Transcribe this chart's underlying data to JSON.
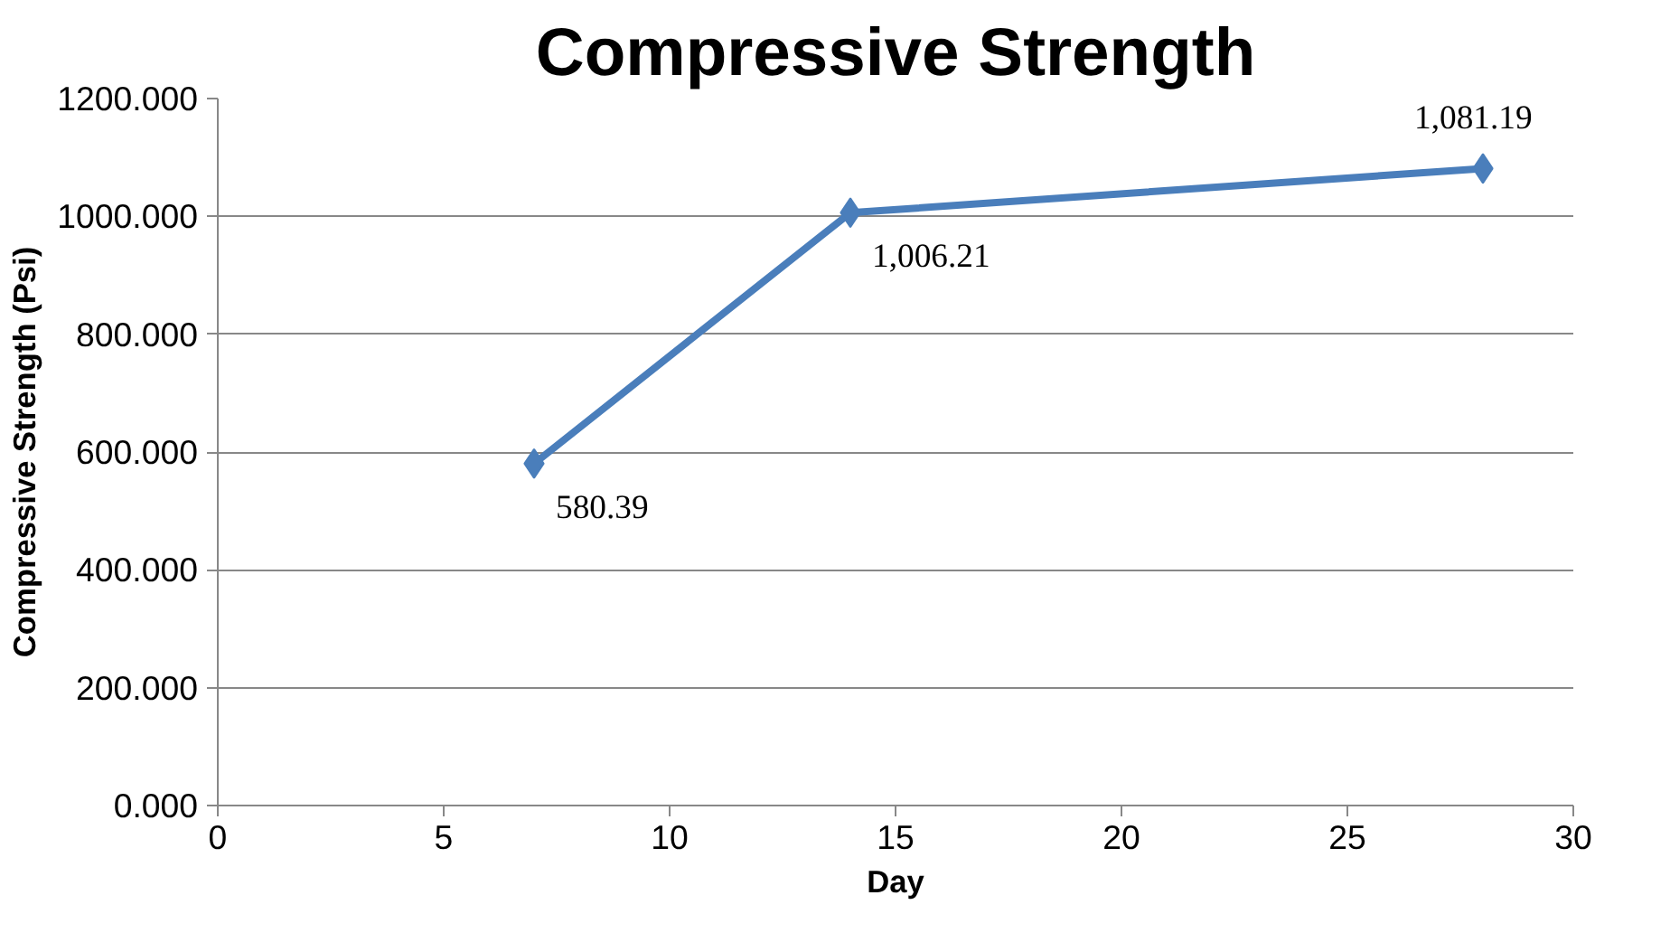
{
  "chart_data": {
    "type": "line",
    "title": "Compressive Strength",
    "xlabel": "Day",
    "ylabel": "Compressive Strength (Psi)",
    "x": [
      7,
      14,
      28
    ],
    "series": [
      {
        "color": "#4a7ebb",
        "values": [
          580.39,
          1006.21,
          1081.19
        ],
        "value_labels": [
          "580.39",
          "1,006.21",
          "1,081.19"
        ]
      }
    ],
    "xlim": [
      0,
      30
    ],
    "xticks": [
      0,
      5,
      10,
      15,
      20,
      25,
      30
    ],
    "ylim": [
      0,
      1200
    ],
    "yticks": [
      {
        "value": 0,
        "label": "0.000"
      },
      {
        "value": 200,
        "label": "200.000"
      },
      {
        "value": 400,
        "label": "400.000"
      },
      {
        "value": 600,
        "label": "600.000"
      },
      {
        "value": 800,
        "label": "800.000"
      },
      {
        "value": 1000,
        "label": "1000.000"
      },
      {
        "value": 1200,
        "label": "1200.000"
      }
    ],
    "grid": "y",
    "marker": "diamond",
    "line_style": "solid"
  }
}
